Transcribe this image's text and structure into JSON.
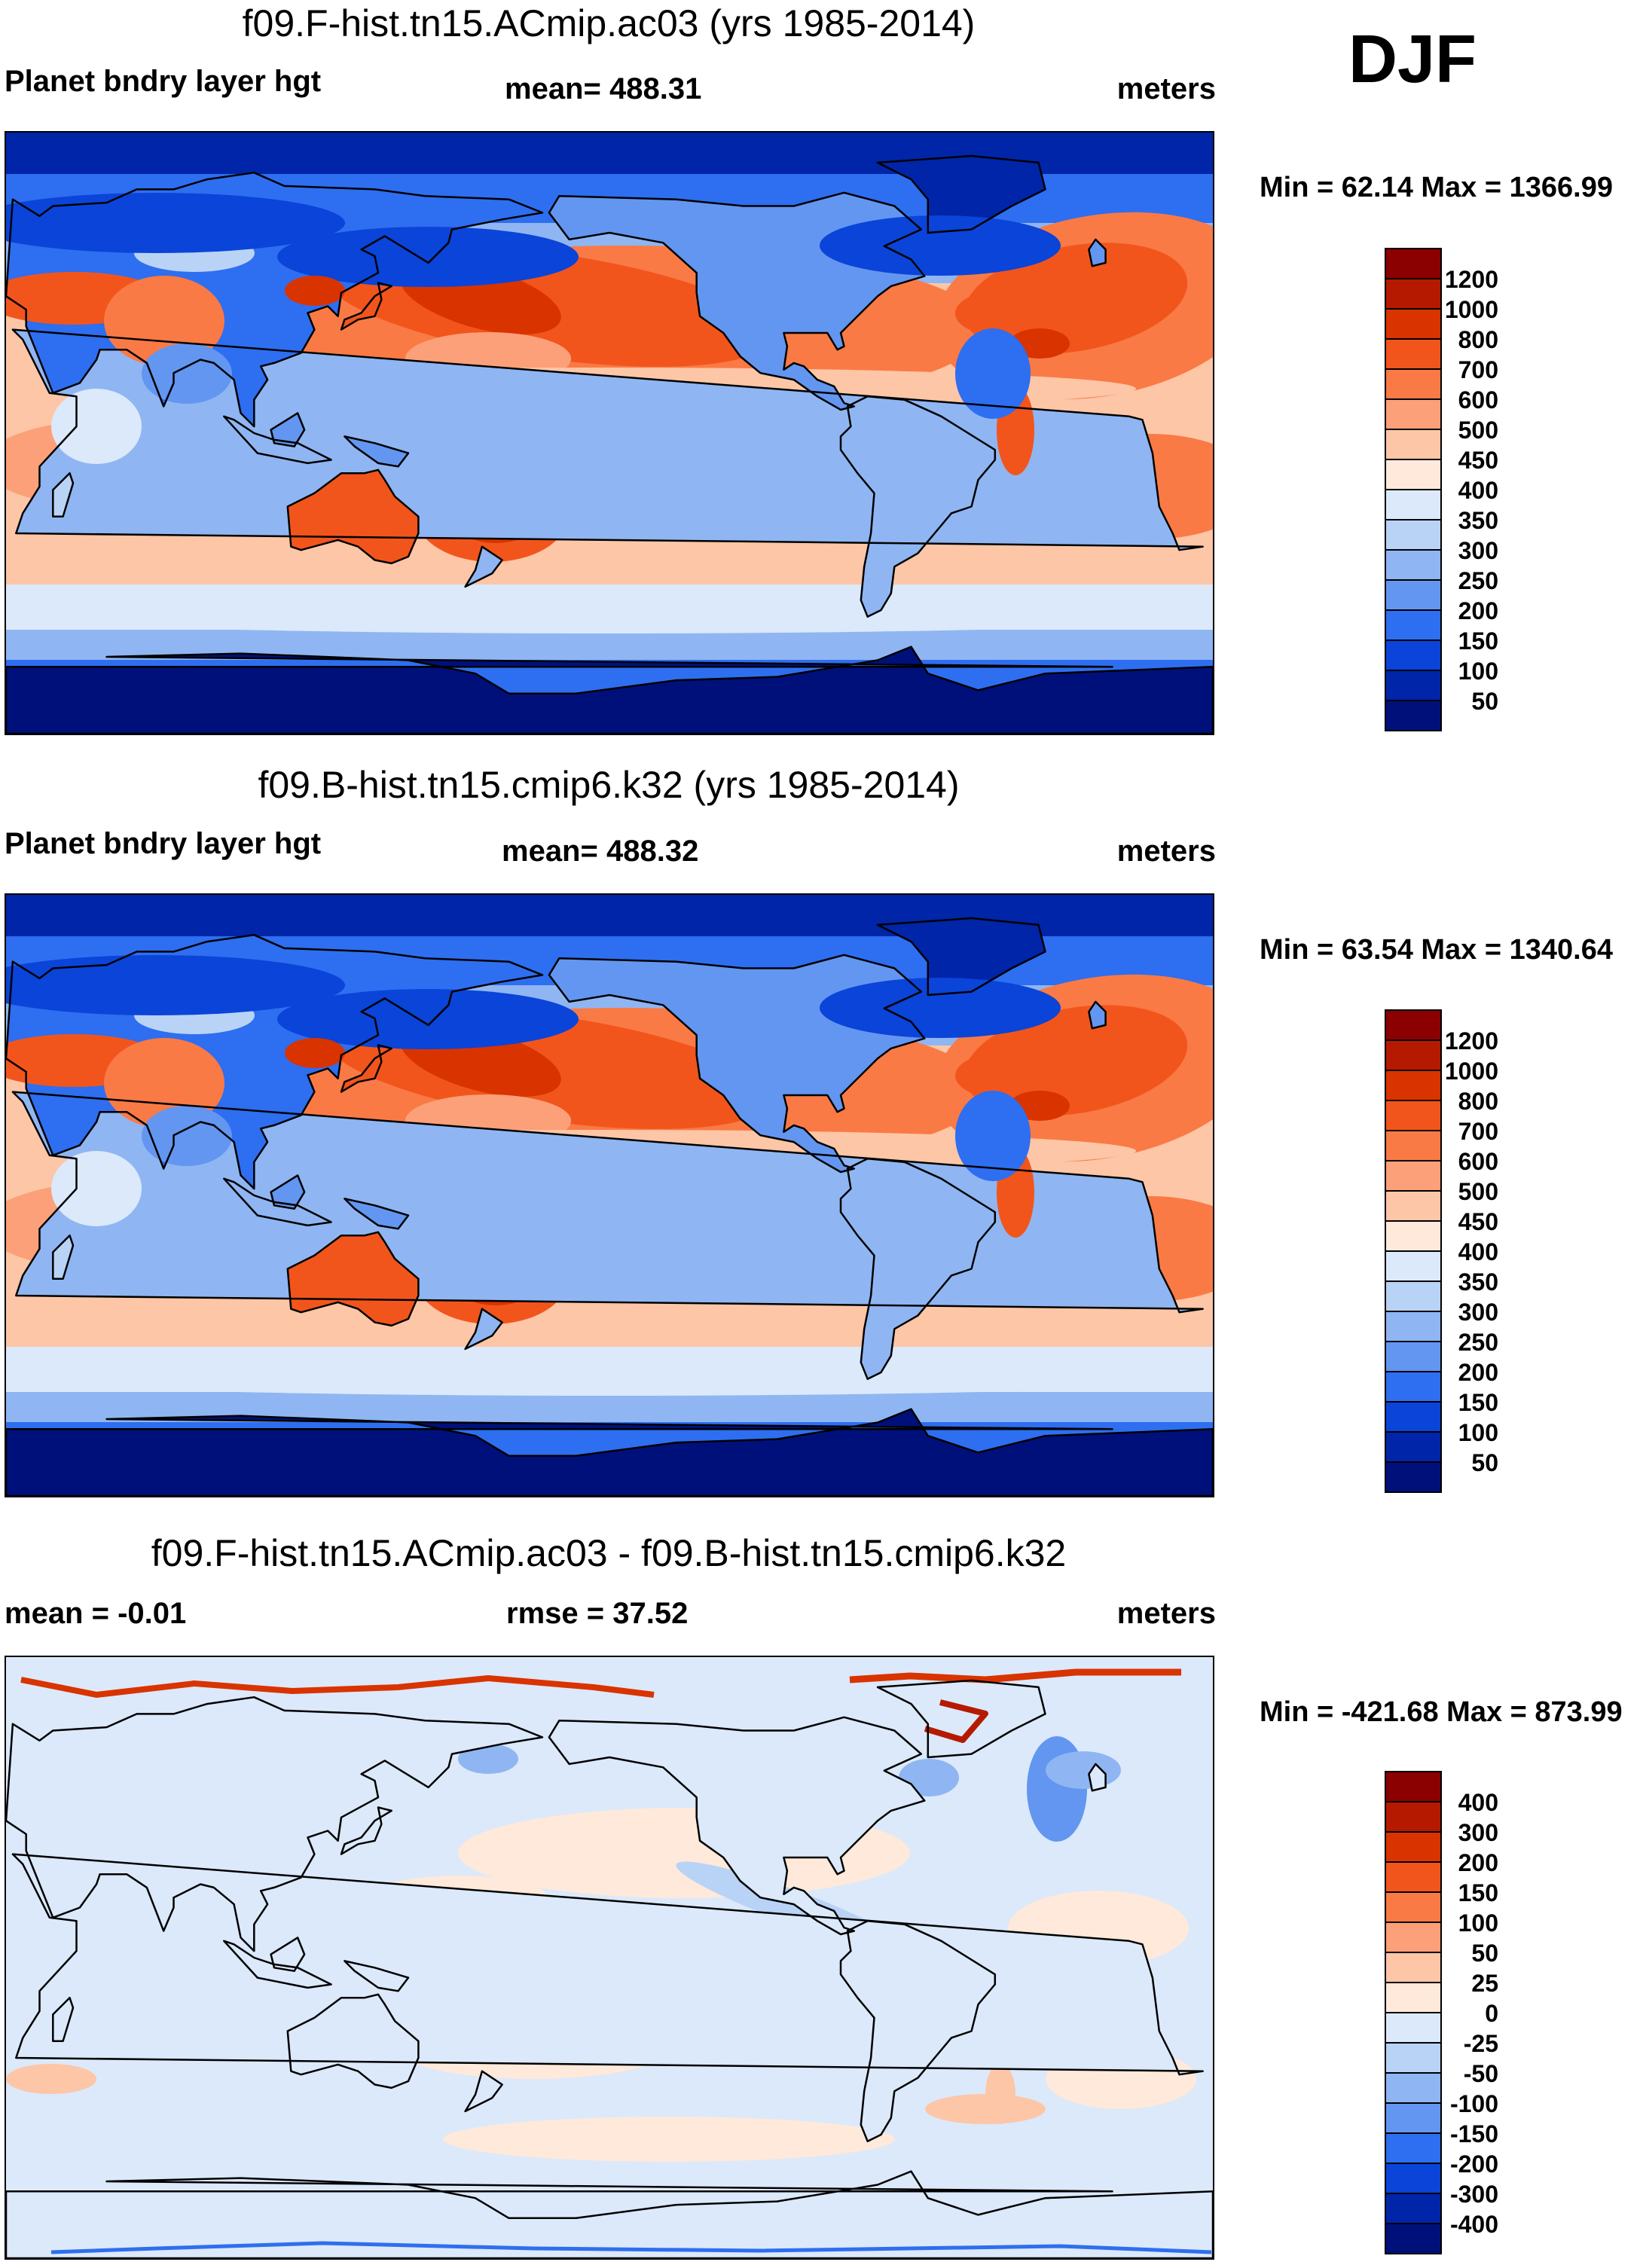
{
  "season": "DJF",
  "panels": [
    {
      "title": "f09.F-hist.tn15.ACmip.ac03 (yrs 1985-2014)",
      "left_label": "Planet bndry layer hgt",
      "center_label": "mean= 488.31",
      "right_label": "meters",
      "minmax": "Min =  62.14 Max = 1366.99",
      "variant": "abs"
    },
    {
      "title": "f09.B-hist.tn15.cmip6.k32 (yrs 1985-2014)",
      "left_label": "Planet bndry layer hgt",
      "center_label": "mean= 488.32",
      "right_label": "meters",
      "minmax": "Min =  63.54 Max = 1340.64",
      "variant": "abs"
    },
    {
      "title": "f09.F-hist.tn15.ACmip.ac03 - f09.B-hist.tn15.cmip6.k32",
      "left_label": "mean =  -0.01",
      "center_label": "rmse =  37.52",
      "right_label": "meters",
      "minmax": "Min = -421.68 Max = 873.99",
      "variant": "diff"
    }
  ],
  "colorbar_abs": {
    "levels": [
      "1200",
      "1000",
      "800",
      "700",
      "600",
      "500",
      "450",
      "400",
      "350",
      "300",
      "250",
      "200",
      "150",
      "100",
      "50"
    ],
    "colors": [
      "#8b0000",
      "#b51a00",
      "#d93300",
      "#f2551c",
      "#fa7a45",
      "#fca079",
      "#fdc6a6",
      "#fee9da",
      "#dbe9fa",
      "#b9d3f6",
      "#8fb6f2",
      "#6396f0",
      "#2e6ef0",
      "#0a44d8",
      "#0025a8",
      "#00107a"
    ]
  },
  "colorbar_diff": {
    "levels": [
      "400",
      "300",
      "200",
      "150",
      "100",
      "50",
      "25",
      "0",
      "-25",
      "-50",
      "-100",
      "-150",
      "-200",
      "-300",
      "-400"
    ],
    "colors": [
      "#8b0000",
      "#b51a00",
      "#d93300",
      "#f2551c",
      "#fa7a45",
      "#fca079",
      "#fdc6a6",
      "#fee9da",
      "#dbe9fa",
      "#b9d3f6",
      "#8fb6f2",
      "#6396f0",
      "#2e6ef0",
      "#0a44d8",
      "#0025a8",
      "#00107a"
    ]
  },
  "chart_data": [
    {
      "type": "heatmap",
      "title": "f09.F-hist.tn15.ACmip.ac03 (yrs 1985-2014)",
      "variable": "Planet bndry layer hgt",
      "units": "meters",
      "mean": 488.31,
      "min": 62.14,
      "max": 1366.99,
      "contour_levels": [
        50,
        100,
        150,
        200,
        250,
        300,
        350,
        400,
        450,
        500,
        600,
        700,
        800,
        1000,
        1200
      ]
    },
    {
      "type": "heatmap",
      "title": "f09.B-hist.tn15.cmip6.k32 (yrs 1985-2014)",
      "variable": "Planet bndry layer hgt",
      "units": "meters",
      "mean": 488.32,
      "min": 63.54,
      "max": 1340.64,
      "contour_levels": [
        50,
        100,
        150,
        200,
        250,
        300,
        350,
        400,
        450,
        500,
        600,
        700,
        800,
        1000,
        1200
      ]
    },
    {
      "type": "heatmap",
      "title": "f09.F-hist.tn15.ACmip.ac03 - f09.B-hist.tn15.cmip6.k32",
      "units": "meters",
      "mean": -0.01,
      "rmse": 37.52,
      "min": -421.68,
      "max": 873.99,
      "contour_levels": [
        -400,
        -300,
        -200,
        -150,
        -100,
        -50,
        -25,
        0,
        25,
        50,
        100,
        150,
        200,
        300,
        400
      ]
    }
  ]
}
